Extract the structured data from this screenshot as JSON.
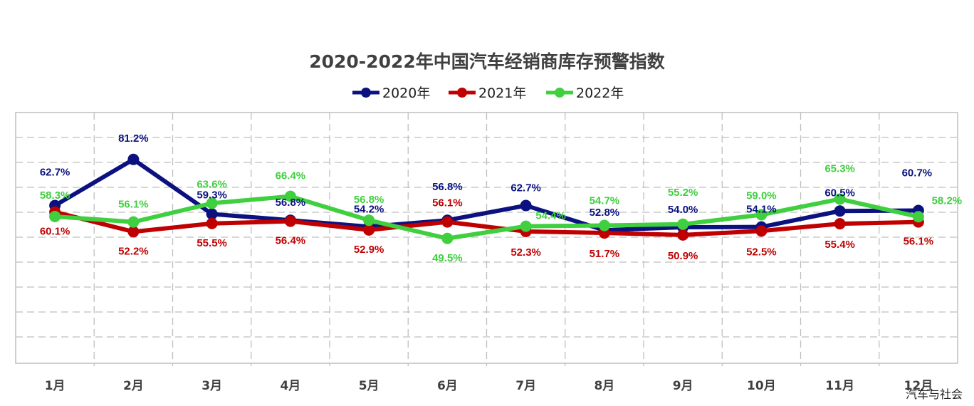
{
  "chart_data": {
    "type": "line",
    "title": "2020-2022年中国汽车经销商库存预警指数",
    "categories": [
      "1月",
      "2月",
      "3月",
      "4月",
      "5月",
      "6月",
      "7月",
      "8月",
      "9月",
      "10月",
      "11月",
      "12月"
    ],
    "ylim": [
      0,
      100
    ],
    "grid": true,
    "legend_position": "top-center",
    "series": [
      {
        "name": "2020年",
        "color": "#0b127f",
        "values": [
          62.7,
          81.2,
          59.3,
          56.8,
          54.2,
          56.8,
          62.7,
          52.8,
          54.0,
          54.1,
          60.5,
          60.7
        ],
        "labels": [
          "62.7%",
          "81.2%",
          "59.3%",
          "56.8%",
          "54.2%",
          "56.8%",
          "62.7%",
          "52.8%",
          "54.0%",
          "54.1%",
          "60.5%",
          "60.7%"
        ]
      },
      {
        "name": "2021年",
        "color": "#c00000",
        "values": [
          60.1,
          52.2,
          55.5,
          56.4,
          52.9,
          56.1,
          52.3,
          51.7,
          50.9,
          52.5,
          55.4,
          56.1
        ],
        "labels": [
          "60.1%",
          "52.2%",
          "55.5%",
          "56.4%",
          "52.9%",
          "56.1%",
          "52.3%",
          "51.7%",
          "50.9%",
          "52.5%",
          "55.4%",
          "56.1%"
        ]
      },
      {
        "name": "2022年",
        "color": "#3fcf3f",
        "values": [
          58.3,
          56.1,
          63.6,
          66.4,
          56.8,
          49.5,
          54.4,
          54.7,
          55.2,
          59.0,
          65.3,
          58.2
        ],
        "labels": [
          "58.3%",
          "56.1%",
          "63.6%",
          "66.4%",
          "56.8%",
          "49.5%",
          "54.4%",
          "54.7%",
          "55.2%",
          "59.0%",
          "65.3%",
          "58.2%"
        ]
      }
    ]
  },
  "watermark": "汽车与社会"
}
